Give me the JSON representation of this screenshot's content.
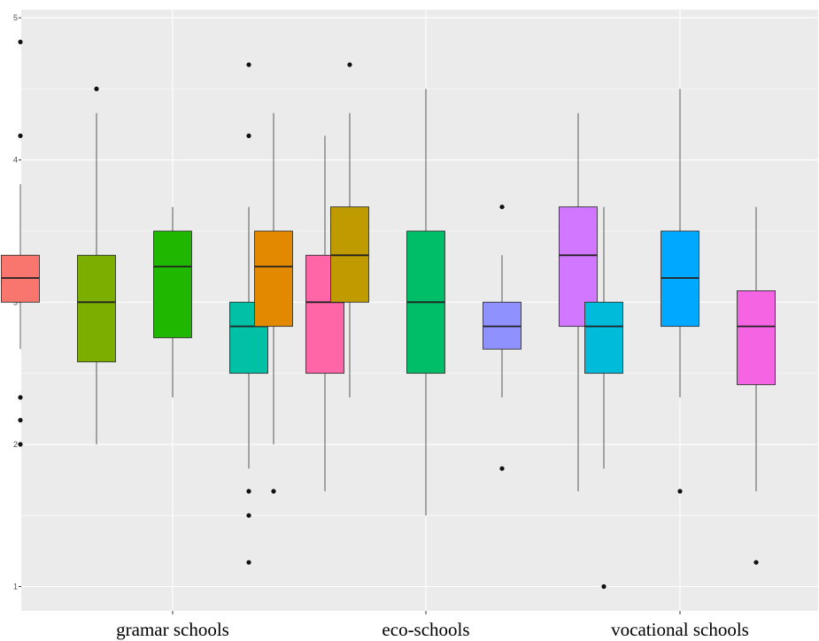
{
  "chart_data": {
    "type": "boxplot",
    "categories": [
      "gramar schools",
      "eco-schools",
      "vocational schools"
    ],
    "y_ticks": [
      "1",
      "2",
      "3",
      "4",
      "5"
    ],
    "ylim": [
      0.85,
      5.1
    ],
    "grid": true,
    "legend": "none",
    "background": "#ebebeb",
    "boxes": [
      {
        "category": "gramar schools",
        "slot": 0,
        "fill": "#F8766D",
        "whisker_low": 2.67,
        "q1": 3.0,
        "median": 3.17,
        "q3": 3.33,
        "whisker_high": 3.83,
        "outliers": [
          4.83,
          4.17,
          2.33,
          2.17,
          2.0
        ]
      },
      {
        "category": "gramar schools",
        "slot": 1,
        "fill": "#7CAE00",
        "whisker_low": 2.0,
        "q1": 2.58,
        "median": 3.0,
        "q3": 3.33,
        "whisker_high": 4.33,
        "outliers": [
          4.5
        ]
      },
      {
        "category": "gramar schools",
        "slot": 2,
        "fill": "#1FB700",
        "whisker_low": 2.33,
        "q1": 2.75,
        "median": 3.25,
        "q3": 3.5,
        "whisker_high": 3.67,
        "outliers": []
      },
      {
        "category": "gramar schools",
        "slot": 3,
        "fill": "#00C1A5",
        "whisker_low": 1.83,
        "q1": 2.5,
        "median": 2.83,
        "q3": 3.0,
        "whisker_high": 3.67,
        "outliers": [
          4.67,
          4.17,
          1.67,
          1.5,
          1.17
        ]
      },
      {
        "category": "gramar schools",
        "slot": 4,
        "fill": "#FF66A8",
        "whisker_low": 1.67,
        "q1": 2.5,
        "median": 3.0,
        "q3": 3.33,
        "whisker_high": 4.17,
        "outliers": []
      },
      {
        "category": "eco-schools",
        "slot": 0,
        "fill": "#E38900",
        "whisker_low": 2.0,
        "q1": 2.83,
        "median": 3.25,
        "q3": 3.5,
        "whisker_high": 4.33,
        "outliers": [
          1.67
        ]
      },
      {
        "category": "eco-schools",
        "slot": 1,
        "fill": "#C09B00",
        "whisker_low": 2.33,
        "q1": 3.0,
        "median": 3.33,
        "q3": 3.67,
        "whisker_high": 4.33,
        "outliers": [
          4.67
        ]
      },
      {
        "category": "eco-schools",
        "slot": 2,
        "fill": "#00BE67",
        "whisker_low": 1.5,
        "q1": 2.5,
        "median": 3.0,
        "q3": 3.5,
        "whisker_high": 4.5,
        "outliers": []
      },
      {
        "category": "eco-schools",
        "slot": 3,
        "fill": "#8F91FF",
        "whisker_low": 2.33,
        "q1": 2.67,
        "median": 2.83,
        "q3": 3.0,
        "whisker_high": 3.33,
        "outliers": [
          3.67,
          1.83
        ]
      },
      {
        "category": "eco-schools",
        "slot": 4,
        "fill": "#D277FF",
        "whisker_low": 1.67,
        "q1": 2.83,
        "median": 3.33,
        "q3": 3.67,
        "whisker_high": 4.33,
        "outliers": []
      },
      {
        "category": "vocational schools",
        "slot": 0,
        "fill": "#00BBDA",
        "whisker_low": 1.83,
        "q1": 2.5,
        "median": 2.83,
        "q3": 3.0,
        "whisker_high": 3.67,
        "outliers": [
          1.0
        ]
      },
      {
        "category": "vocational schools",
        "slot": 1,
        "fill": "#00A9FF",
        "whisker_low": 2.33,
        "q1": 2.83,
        "median": 3.17,
        "q3": 3.5,
        "whisker_high": 4.5,
        "outliers": [
          1.67
        ]
      },
      {
        "category": "vocational schools",
        "slot": 2,
        "fill": "#F564E3",
        "whisker_low": 1.67,
        "q1": 2.42,
        "median": 2.83,
        "q3": 3.08,
        "whisker_high": 3.67,
        "outliers": [
          1.17
        ]
      }
    ]
  }
}
